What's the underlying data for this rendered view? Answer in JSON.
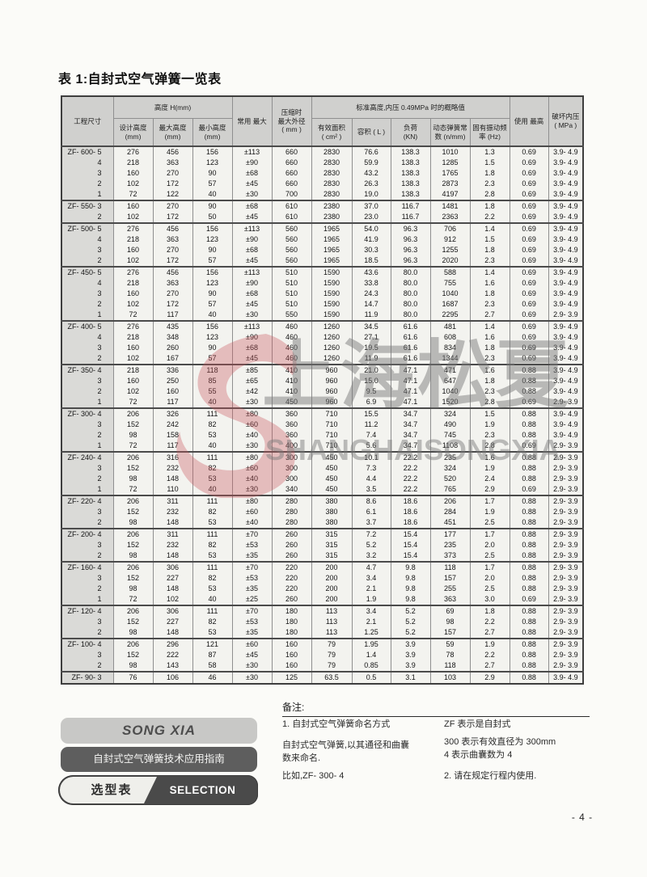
{
  "page": {
    "title": "表 1:自封式空气弹簧一览表",
    "page_number": "- 4 -"
  },
  "table": {
    "header": {
      "project": "工程尺寸",
      "height_group": "高度 H(mm)",
      "design_height": "设计高度\n(mm)",
      "max_height": "最大高度\n(mm)",
      "min_height": "最小高度\n(mm)",
      "common_stroke": "常用 最大",
      "compressed_od": "压缩时\n最大外径\n( mm )",
      "standard_group": "标准高度,内压 0.49MPa 时的概略值",
      "effective_area": "有效面积\n( cm² )",
      "volume": "容积 ( L )",
      "load": "负荷\n(KN)",
      "spring_rate": "动态弹簧常\n数 (n/mm)",
      "natural_freq": "固有振动频\n率 (Hz)",
      "max_use": "使用 最高",
      "burst_pressure": "破坏内压\n( MPa )"
    },
    "rows": [
      {
        "m": "ZF- 600- 5",
        "g": true,
        "v": [
          "276",
          "456",
          "156",
          "±113",
          "660",
          "2830",
          "76.6",
          "138.3",
          "1010",
          "1.3",
          "0.69",
          "3.9- 4.9"
        ]
      },
      {
        "m": "4",
        "g": false,
        "v": [
          "218",
          "363",
          "123",
          "±90",
          "660",
          "2830",
          "59.9",
          "138.3",
          "1285",
          "1.5",
          "0.69",
          "3.9- 4.9"
        ]
      },
      {
        "m": "3",
        "g": false,
        "v": [
          "160",
          "270",
          "90",
          "±68",
          "660",
          "2830",
          "43.2",
          "138.3",
          "1765",
          "1.8",
          "0.69",
          "3.9- 4.9"
        ]
      },
      {
        "m": "2",
        "g": false,
        "v": [
          "102",
          "172",
          "57",
          "±45",
          "660",
          "2830",
          "26.3",
          "138.3",
          "2873",
          "2.3",
          "0.69",
          "3.9- 4.9"
        ]
      },
      {
        "m": "1",
        "g": false,
        "v": [
          "72",
          "122",
          "40",
          "±30",
          "700",
          "2830",
          "19.0",
          "138.3",
          "4197",
          "2.8",
          "0.69",
          "3.9- 4.9"
        ]
      },
      {
        "m": "ZF- 550- 3",
        "g": true,
        "v": [
          "160",
          "270",
          "90",
          "±68",
          "610",
          "2380",
          "37.0",
          "116.7",
          "1481",
          "1.8",
          "0.69",
          "3.9- 4.9"
        ]
      },
      {
        "m": "2",
        "g": false,
        "v": [
          "102",
          "172",
          "50",
          "±45",
          "610",
          "2380",
          "23.0",
          "116.7",
          "2363",
          "2.2",
          "0.69",
          "3.9- 4.9"
        ]
      },
      {
        "m": "ZF- 500- 5",
        "g": true,
        "v": [
          "276",
          "456",
          "156",
          "±113",
          "560",
          "1965",
          "54.0",
          "96.3",
          "706",
          "1.4",
          "0.69",
          "3.9- 4.9"
        ]
      },
      {
        "m": "4",
        "g": false,
        "v": [
          "218",
          "363",
          "123",
          "±90",
          "560",
          "1965",
          "41.9",
          "96.3",
          "912",
          "1.5",
          "0.69",
          "3.9- 4.9"
        ]
      },
      {
        "m": "3",
        "g": false,
        "v": [
          "160",
          "270",
          "90",
          "±68",
          "560",
          "1965",
          "30.3",
          "96.3",
          "1255",
          "1.8",
          "0.69",
          "3.9- 4.9"
        ]
      },
      {
        "m": "2",
        "g": false,
        "v": [
          "102",
          "172",
          "57",
          "±45",
          "560",
          "1965",
          "18.5",
          "96.3",
          "2020",
          "2.3",
          "0.69",
          "3.9- 4.9"
        ]
      },
      {
        "m": "ZF- 450- 5",
        "g": true,
        "v": [
          "276",
          "456",
          "156",
          "±113",
          "510",
          "1590",
          "43.6",
          "80.0",
          "588",
          "1.4",
          "0.69",
          "3.9- 4.9"
        ]
      },
      {
        "m": "4",
        "g": false,
        "v": [
          "218",
          "363",
          "123",
          "±90",
          "510",
          "1590",
          "33.8",
          "80.0",
          "755",
          "1.6",
          "0.69",
          "3.9- 4.9"
        ]
      },
      {
        "m": "3",
        "g": false,
        "v": [
          "160",
          "270",
          "90",
          "±68",
          "510",
          "1590",
          "24.3",
          "80.0",
          "1040",
          "1.8",
          "0.69",
          "3.9- 4.9"
        ]
      },
      {
        "m": "2",
        "g": false,
        "v": [
          "102",
          "172",
          "57",
          "±45",
          "510",
          "1590",
          "14.7",
          "80.0",
          "1687",
          "2.3",
          "0.69",
          "3.9- 4.9"
        ]
      },
      {
        "m": "1",
        "g": false,
        "v": [
          "72",
          "117",
          "40",
          "±30",
          "550",
          "1590",
          "11.9",
          "80.0",
          "2295",
          "2.7",
          "0.69",
          "2.9- 3.9"
        ]
      },
      {
        "m": "ZF- 400- 5",
        "g": true,
        "v": [
          "276",
          "435",
          "156",
          "±113",
          "460",
          "1260",
          "34.5",
          "61.6",
          "481",
          "1.4",
          "0.69",
          "3.9- 4.9"
        ]
      },
      {
        "m": "4",
        "g": false,
        "v": [
          "218",
          "348",
          "123",
          "±90",
          "460",
          "1260",
          "27.1",
          "61.6",
          "608",
          "1.6",
          "0.69",
          "3.9- 4.9"
        ]
      },
      {
        "m": "3",
        "g": false,
        "v": [
          "160",
          "260",
          "90",
          "±68",
          "460",
          "1260",
          "19.5",
          "61.6",
          "834",
          "1.8",
          "0.69",
          "3.9- 4.9"
        ]
      },
      {
        "m": "2",
        "g": false,
        "v": [
          "102",
          "167",
          "57",
          "±45",
          "460",
          "1260",
          "11.9",
          "61.6",
          "1344",
          "2.3",
          "0.69",
          "3.9- 4.9"
        ]
      },
      {
        "m": "ZF- 350- 4",
        "g": true,
        "v": [
          "218",
          "336",
          "118",
          "±85",
          "410",
          "960",
          "21.0",
          "47.1",
          "471",
          "1.6",
          "0.88",
          "3.9- 4.9"
        ]
      },
      {
        "m": "3",
        "g": false,
        "v": [
          "160",
          "250",
          "85",
          "±65",
          "410",
          "960",
          "15.0",
          "47.1",
          "647",
          "1.8",
          "0.88",
          "3.9- 4.9"
        ]
      },
      {
        "m": "2",
        "g": false,
        "v": [
          "102",
          "160",
          "55",
          "±42",
          "410",
          "960",
          "9.5",
          "47.1",
          "1040",
          "2.3",
          "0.88",
          "3.9- 4.9"
        ]
      },
      {
        "m": "1",
        "g": false,
        "v": [
          "72",
          "117",
          "40",
          "±30",
          "450",
          "960",
          "6.9",
          "47.1",
          "1520",
          "2.8",
          "0.69",
          "2.9- 3.9"
        ]
      },
      {
        "m": "ZF- 300- 4",
        "g": true,
        "v": [
          "206",
          "326",
          "111",
          "±80",
          "360",
          "710",
          "15.5",
          "34.7",
          "324",
          "1.5",
          "0.88",
          "3.9- 4.9"
        ]
      },
      {
        "m": "3",
        "g": false,
        "v": [
          "152",
          "242",
          "82",
          "±60",
          "360",
          "710",
          "11.2",
          "34.7",
          "490",
          "1.9",
          "0.88",
          "3.9- 4.9"
        ]
      },
      {
        "m": "2",
        "g": false,
        "v": [
          "98",
          "158",
          "53",
          "±40",
          "360",
          "710",
          "7.4",
          "34.7",
          "745",
          "2.3",
          "0.88",
          "3.9- 4.9"
        ]
      },
      {
        "m": "1",
        "g": false,
        "v": [
          "72",
          "117",
          "40",
          "±30",
          "400",
          "710",
          "5.6",
          "34.7",
          "1108",
          "2.8",
          "0.69",
          "2.9- 3.9"
        ]
      },
      {
        "m": "ZF- 240- 4",
        "g": true,
        "v": [
          "206",
          "316",
          "111",
          "±80",
          "300",
          "450",
          "10.1",
          "22.2",
          "235",
          "1.6",
          "0.88",
          "2.9- 3.9"
        ]
      },
      {
        "m": "3",
        "g": false,
        "v": [
          "152",
          "232",
          "82",
          "±60",
          "300",
          "450",
          "7.3",
          "22.2",
          "324",
          "1.9",
          "0.88",
          "2.9- 3.9"
        ]
      },
      {
        "m": "2",
        "g": false,
        "v": [
          "98",
          "148",
          "53",
          "±40",
          "300",
          "450",
          "4.4",
          "22.2",
          "520",
          "2.4",
          "0.88",
          "2.9- 3.9"
        ]
      },
      {
        "m": "1",
        "g": false,
        "v": [
          "72",
          "110",
          "40",
          "±30",
          "340",
          "450",
          "3.5",
          "22.2",
          "765",
          "2.9",
          "0.69",
          "2.9- 3.9"
        ]
      },
      {
        "m": "ZF- 220- 4",
        "g": true,
        "v": [
          "206",
          "311",
          "111",
          "±80",
          "280",
          "380",
          "8.6",
          "18.6",
          "206",
          "1.7",
          "0.88",
          "2.9- 3.9"
        ]
      },
      {
        "m": "3",
        "g": false,
        "v": [
          "152",
          "232",
          "82",
          "±60",
          "280",
          "380",
          "6.1",
          "18.6",
          "284",
          "1.9",
          "0.88",
          "2.9- 3.9"
        ]
      },
      {
        "m": "2",
        "g": false,
        "v": [
          "98",
          "148",
          "53",
          "±40",
          "280",
          "380",
          "3.7",
          "18.6",
          "451",
          "2.5",
          "0.88",
          "2.9- 3.9"
        ]
      },
      {
        "m": "ZF- 200- 4",
        "g": true,
        "v": [
          "206",
          "311",
          "111",
          "±70",
          "260",
          "315",
          "7.2",
          "15.4",
          "177",
          "1.7",
          "0.88",
          "2.9- 3.9"
        ]
      },
      {
        "m": "3",
        "g": false,
        "v": [
          "152",
          "232",
          "82",
          "±53",
          "260",
          "315",
          "5.2",
          "15.4",
          "235",
          "2.0",
          "0.88",
          "2.9- 3.9"
        ]
      },
      {
        "m": "2",
        "g": false,
        "v": [
          "98",
          "148",
          "53",
          "±35",
          "260",
          "315",
          "3.2",
          "15.4",
          "373",
          "2.5",
          "0.88",
          "2.9- 3.9"
        ]
      },
      {
        "m": "ZF- 160- 4",
        "g": true,
        "v": [
          "206",
          "306",
          "111",
          "±70",
          "220",
          "200",
          "4.7",
          "9.8",
          "118",
          "1.7",
          "0.88",
          "2.9- 3.9"
        ]
      },
      {
        "m": "3",
        "g": false,
        "v": [
          "152",
          "227",
          "82",
          "±53",
          "220",
          "200",
          "3.4",
          "9.8",
          "157",
          "2.0",
          "0.88",
          "2.9- 3.9"
        ]
      },
      {
        "m": "2",
        "g": false,
        "v": [
          "98",
          "148",
          "53",
          "±35",
          "220",
          "200",
          "2.1",
          "9.8",
          "255",
          "2.5",
          "0.88",
          "2.9- 3.9"
        ]
      },
      {
        "m": "1",
        "g": false,
        "v": [
          "72",
          "102",
          "40",
          "±25",
          "260",
          "200",
          "1.9",
          "9.8",
          "363",
          "3.0",
          "0.69",
          "2.9- 3.9"
        ]
      },
      {
        "m": "ZF- 120- 4",
        "g": true,
        "v": [
          "206",
          "306",
          "111",
          "±70",
          "180",
          "113",
          "3.4",
          "5.2",
          "69",
          "1.8",
          "0.88",
          "2.9- 3.9"
        ]
      },
      {
        "m": "3",
        "g": false,
        "v": [
          "152",
          "227",
          "82",
          "±53",
          "180",
          "113",
          "2.1",
          "5.2",
          "98",
          "2.2",
          "0.88",
          "2.9- 3.9"
        ]
      },
      {
        "m": "2",
        "g": false,
        "v": [
          "98",
          "148",
          "53",
          "±35",
          "180",
          "113",
          "1.25",
          "5.2",
          "157",
          "2.7",
          "0.88",
          "2.9- 3.9"
        ]
      },
      {
        "m": "ZF- 100- 4",
        "g": true,
        "v": [
          "206",
          "296",
          "121",
          "±60",
          "160",
          "79",
          "1.95",
          "3.9",
          "59",
          "1.9",
          "0.88",
          "2.9- 3.9"
        ]
      },
      {
        "m": "3",
        "g": false,
        "v": [
          "152",
          "222",
          "87",
          "±45",
          "160",
          "79",
          "1.4",
          "3.9",
          "78",
          "2.2",
          "0.88",
          "2.9- 3.9"
        ]
      },
      {
        "m": "2",
        "g": false,
        "v": [
          "98",
          "143",
          "58",
          "±30",
          "160",
          "79",
          "0.85",
          "3.9",
          "118",
          "2.7",
          "0.88",
          "2.9- 3.9"
        ]
      },
      {
        "m": "ZF- 90- 3",
        "g": true,
        "v": [
          "76",
          "106",
          "46",
          "±30",
          "125",
          "63.5",
          "0.5",
          "3.1",
          "103",
          "2.9",
          "0.88",
          "3.9- 4.9"
        ]
      }
    ]
  },
  "watermark": {
    "cn": "上海松夏",
    "en": "SHANGHAISONGXIA",
    "logo_color": "#c9545c"
  },
  "footer": {
    "brand": "SONG XIA",
    "guide": "自封式空气弹簧技术应用指南",
    "selection_cn": "选型表",
    "selection_en": "SELECTION TABLE"
  },
  "notes": {
    "title": "备注:",
    "left": [
      "1. 自封式空气弹簧命名方式",
      "自封式空气弹簧,以其通径和曲囊",
      "数来命名.",
      "比如,ZF- 300- 4"
    ],
    "right": [
      "ZF 表示是自封式",
      "300 表示有效直径为 300mm",
      "4 表示曲囊数为 4",
      "2. 请在规定行程内使用."
    ]
  }
}
